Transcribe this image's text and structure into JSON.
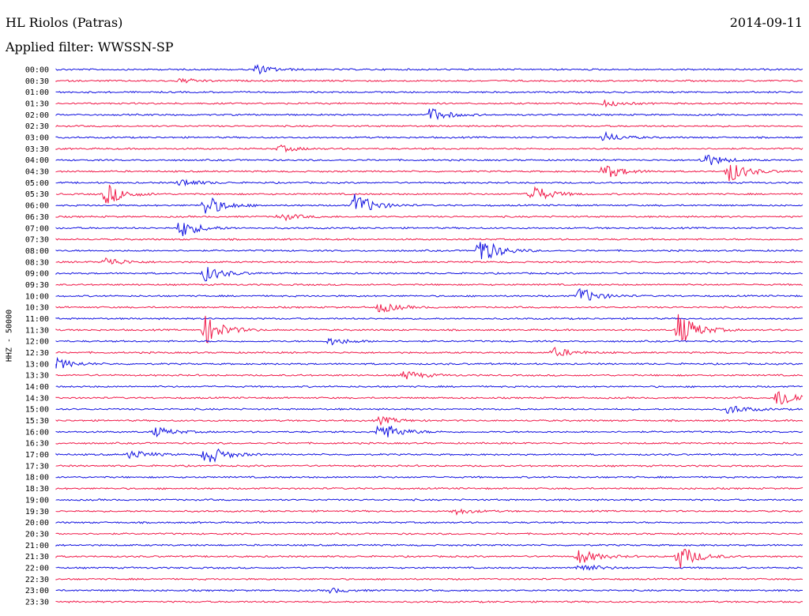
{
  "header": {
    "station": "HL Riolos (Patras)",
    "filter_label": "Applied filter: WWSSN-SP",
    "date": "2014-09-11",
    "channel_label": "HHZ - 50000"
  },
  "colors": {
    "even_trace": "#1010e0",
    "odd_trace": "#f01848"
  },
  "chart_data": {
    "type": "line",
    "title": "HL Riolos (Patras)",
    "xlabel": "",
    "ylabel": "HHZ - 50000",
    "rows": [
      "00:00",
      "00:30",
      "01:00",
      "01:30",
      "02:00",
      "02:30",
      "03:00",
      "03:30",
      "04:00",
      "04:30",
      "05:00",
      "05:30",
      "06:00",
      "06:30",
      "07:00",
      "07:30",
      "08:00",
      "08:30",
      "09:00",
      "09:30",
      "10:00",
      "10:30",
      "11:00",
      "11:30",
      "12:00",
      "12:30",
      "13:00",
      "13:30",
      "14:00",
      "14:30",
      "15:00",
      "15:30",
      "16:00",
      "16:30",
      "17:00",
      "17:30",
      "18:00",
      "18:30",
      "19:00",
      "19:30",
      "20:00",
      "20:30",
      "21:00",
      "21:30",
      "22:00",
      "22:30",
      "23:00",
      "23:30"
    ],
    "series_colors": [
      "#1010e0",
      "#f01848"
    ],
    "events": [
      {
        "row": "00:00",
        "minute": 8,
        "amp": 6
      },
      {
        "row": "00:30",
        "minute": 5,
        "amp": 3
      },
      {
        "row": "01:30",
        "minute": 22,
        "amp": 4
      },
      {
        "row": "02:00",
        "minute": 15,
        "amp": 9
      },
      {
        "row": "03:00",
        "minute": 22,
        "amp": 6
      },
      {
        "row": "03:30",
        "minute": 9,
        "amp": 4
      },
      {
        "row": "04:00",
        "minute": 26,
        "amp": 9
      },
      {
        "row": "04:30",
        "minute": 22,
        "amp": 10
      },
      {
        "row": "04:30",
        "minute": 27,
        "amp": 14
      },
      {
        "row": "05:00",
        "minute": 5,
        "amp": 5
      },
      {
        "row": "05:30",
        "minute": 2,
        "amp": 14
      },
      {
        "row": "05:30",
        "minute": 19,
        "amp": 14
      },
      {
        "row": "06:00",
        "minute": 6,
        "amp": 14
      },
      {
        "row": "06:00",
        "minute": 12,
        "amp": 16
      },
      {
        "row": "06:30",
        "minute": 9,
        "amp": 5
      },
      {
        "row": "07:00",
        "minute": 5,
        "amp": 12
      },
      {
        "row": "08:00",
        "minute": 17,
        "amp": 18
      },
      {
        "row": "08:30",
        "minute": 2,
        "amp": 6
      },
      {
        "row": "09:00",
        "minute": 6,
        "amp": 10
      },
      {
        "row": "10:00",
        "minute": 21,
        "amp": 11
      },
      {
        "row": "10:30",
        "minute": 13,
        "amp": 7
      },
      {
        "row": "11:30",
        "minute": 6,
        "amp": 18
      },
      {
        "row": "11:30",
        "minute": 25,
        "amp": 22
      },
      {
        "row": "12:00",
        "minute": 11,
        "amp": 5
      },
      {
        "row": "12:30",
        "minute": 20,
        "amp": 6
      },
      {
        "row": "13:00",
        "minute": 0,
        "amp": 7
      },
      {
        "row": "13:30",
        "minute": 14,
        "amp": 6
      },
      {
        "row": "14:30",
        "minute": 29,
        "amp": 14
      },
      {
        "row": "15:00",
        "minute": 27,
        "amp": 6
      },
      {
        "row": "15:30",
        "minute": 13,
        "amp": 5
      },
      {
        "row": "16:00",
        "minute": 4,
        "amp": 6
      },
      {
        "row": "16:00",
        "minute": 13,
        "amp": 14
      },
      {
        "row": "17:00",
        "minute": 3,
        "amp": 6
      },
      {
        "row": "17:00",
        "minute": 6,
        "amp": 14
      },
      {
        "row": "19:30",
        "minute": 16,
        "amp": 4
      },
      {
        "row": "21:30",
        "minute": 21,
        "amp": 10
      },
      {
        "row": "21:30",
        "minute": 25,
        "amp": 16
      },
      {
        "row": "22:00",
        "minute": 21,
        "amp": 6
      },
      {
        "row": "23:00",
        "minute": 11,
        "amp": 3
      }
    ]
  }
}
